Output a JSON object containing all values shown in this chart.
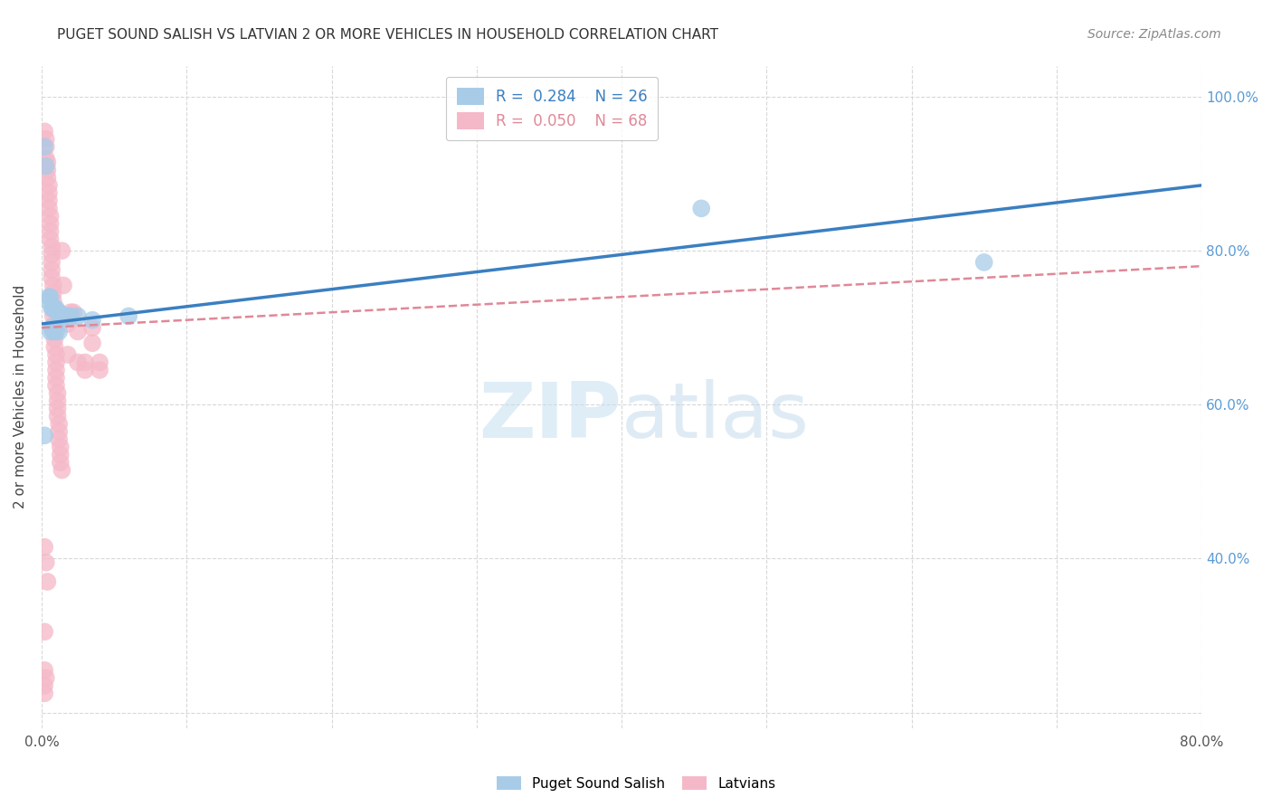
{
  "title": "PUGET SOUND SALISH VS LATVIAN 2 OR MORE VEHICLES IN HOUSEHOLD CORRELATION CHART",
  "source": "Source: ZipAtlas.com",
  "ylabel": "2 or more Vehicles in Household",
  "xlim": [
    0.0,
    0.8
  ],
  "ylim": [
    0.18,
    1.04
  ],
  "blue_R": 0.284,
  "blue_N": 26,
  "pink_R": 0.05,
  "pink_N": 68,
  "watermark_zip": "ZIP",
  "watermark_atlas": "atlas",
  "legend_label_blue": "Puget Sound Salish",
  "legend_label_pink": "Latvians",
  "blue_scatter": [
    [
      0.002,
      0.935
    ],
    [
      0.003,
      0.91
    ],
    [
      0.004,
      0.735
    ],
    [
      0.005,
      0.74
    ],
    [
      0.006,
      0.74
    ],
    [
      0.006,
      0.695
    ],
    [
      0.007,
      0.725
    ],
    [
      0.007,
      0.7
    ],
    [
      0.008,
      0.725
    ],
    [
      0.008,
      0.695
    ],
    [
      0.009,
      0.725
    ],
    [
      0.009,
      0.7
    ],
    [
      0.01,
      0.725
    ],
    [
      0.01,
      0.695
    ],
    [
      0.011,
      0.72
    ],
    [
      0.012,
      0.72
    ],
    [
      0.012,
      0.695
    ],
    [
      0.015,
      0.715
    ],
    [
      0.018,
      0.715
    ],
    [
      0.02,
      0.715
    ],
    [
      0.025,
      0.715
    ],
    [
      0.035,
      0.71
    ],
    [
      0.06,
      0.715
    ],
    [
      0.002,
      0.56
    ],
    [
      0.455,
      0.855
    ],
    [
      0.65,
      0.785
    ]
  ],
  "pink_scatter": [
    [
      0.002,
      0.955
    ],
    [
      0.003,
      0.945
    ],
    [
      0.003,
      0.935
    ],
    [
      0.003,
      0.92
    ],
    [
      0.004,
      0.915
    ],
    [
      0.004,
      0.905
    ],
    [
      0.004,
      0.895
    ],
    [
      0.005,
      0.885
    ],
    [
      0.005,
      0.875
    ],
    [
      0.005,
      0.865
    ],
    [
      0.005,
      0.855
    ],
    [
      0.006,
      0.845
    ],
    [
      0.006,
      0.835
    ],
    [
      0.006,
      0.825
    ],
    [
      0.006,
      0.815
    ],
    [
      0.007,
      0.805
    ],
    [
      0.007,
      0.795
    ],
    [
      0.007,
      0.785
    ],
    [
      0.007,
      0.775
    ],
    [
      0.007,
      0.765
    ],
    [
      0.008,
      0.755
    ],
    [
      0.008,
      0.745
    ],
    [
      0.008,
      0.735
    ],
    [
      0.008,
      0.725
    ],
    [
      0.008,
      0.715
    ],
    [
      0.009,
      0.705
    ],
    [
      0.009,
      0.695
    ],
    [
      0.009,
      0.685
    ],
    [
      0.009,
      0.675
    ],
    [
      0.01,
      0.665
    ],
    [
      0.01,
      0.655
    ],
    [
      0.01,
      0.645
    ],
    [
      0.01,
      0.635
    ],
    [
      0.01,
      0.625
    ],
    [
      0.011,
      0.615
    ],
    [
      0.011,
      0.605
    ],
    [
      0.011,
      0.595
    ],
    [
      0.011,
      0.585
    ],
    [
      0.012,
      0.575
    ],
    [
      0.012,
      0.565
    ],
    [
      0.012,
      0.555
    ],
    [
      0.013,
      0.545
    ],
    [
      0.013,
      0.535
    ],
    [
      0.013,
      0.525
    ],
    [
      0.014,
      0.515
    ],
    [
      0.014,
      0.8
    ],
    [
      0.015,
      0.755
    ],
    [
      0.016,
      0.715
    ],
    [
      0.018,
      0.705
    ],
    [
      0.018,
      0.665
    ],
    [
      0.02,
      0.72
    ],
    [
      0.022,
      0.72
    ],
    [
      0.025,
      0.695
    ],
    [
      0.025,
      0.655
    ],
    [
      0.03,
      0.655
    ],
    [
      0.03,
      0.645
    ],
    [
      0.035,
      0.7
    ],
    [
      0.035,
      0.68
    ],
    [
      0.04,
      0.655
    ],
    [
      0.04,
      0.645
    ],
    [
      0.002,
      0.415
    ],
    [
      0.003,
      0.395
    ],
    [
      0.004,
      0.37
    ],
    [
      0.002,
      0.305
    ],
    [
      0.002,
      0.255
    ],
    [
      0.003,
      0.245
    ],
    [
      0.002,
      0.235
    ],
    [
      0.002,
      0.225
    ]
  ],
  "blue_line_x": [
    0.0,
    0.8
  ],
  "blue_line_y": [
    0.705,
    0.885
  ],
  "pink_line_x": [
    0.0,
    0.8
  ],
  "pink_line_y": [
    0.7,
    0.78
  ],
  "grid_yticks": [
    0.2,
    0.4,
    0.6,
    0.8,
    1.0
  ],
  "grid_color": "#d8d8d8",
  "blue_color": "#a8cce8",
  "pink_color": "#f5b8c8",
  "blue_line_color": "#3a7fc1",
  "pink_line_color": "#e08898",
  "title_color": "#333333",
  "right_axis_color": "#5b9bd5",
  "source_color": "#888888",
  "background_color": "#ffffff"
}
